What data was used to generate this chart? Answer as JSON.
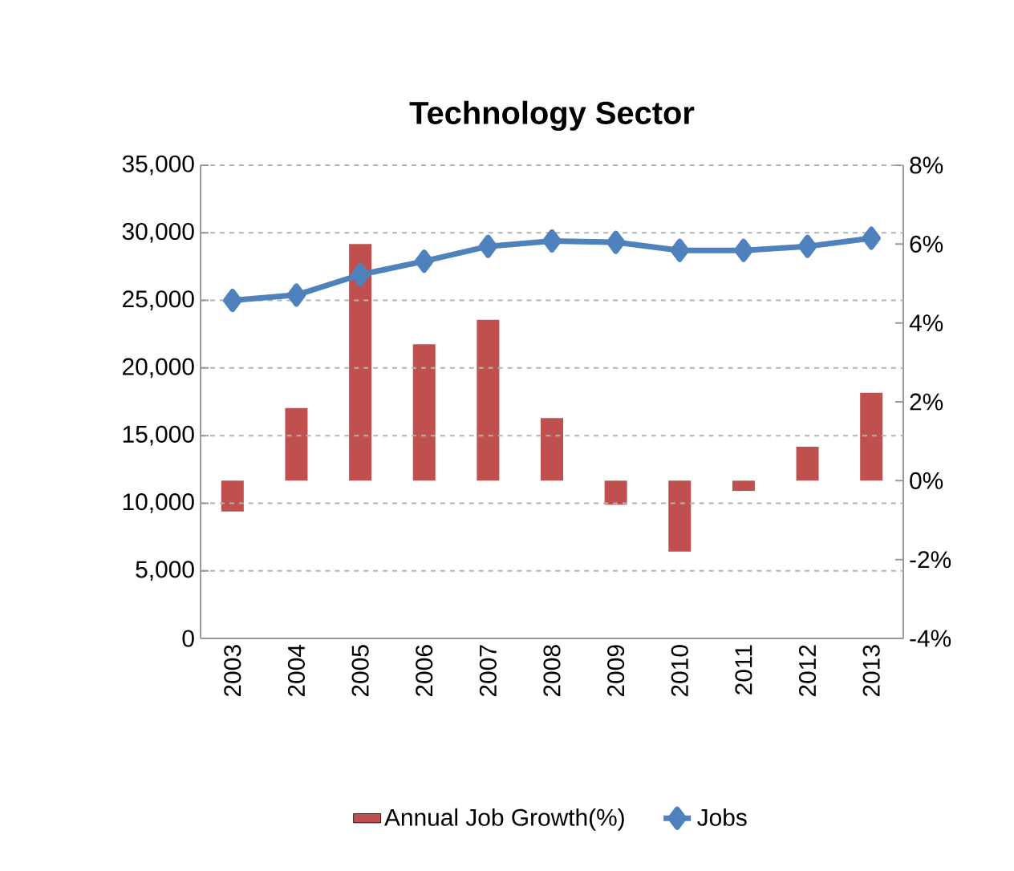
{
  "chart_data": {
    "type": "bar",
    "title": "Technology Sector",
    "categories": [
      "2003",
      "2004",
      "2005",
      "2006",
      "2007",
      "2008",
      "2009",
      "2010",
      "2011",
      "2012",
      "2013"
    ],
    "series": [
      {
        "name": "Annual Job Growth(%)",
        "axis": "y2",
        "color": "#c0504d",
        "values": [
          -0.78,
          1.84,
          6.0,
          3.46,
          4.08,
          1.59,
          -0.61,
          -1.8,
          -0.26,
          0.86,
          2.23
        ]
      },
      {
        "name": "Jobs",
        "type": "line",
        "color": "#4f81bd",
        "marker": "diamond",
        "values": [
          25000,
          25400,
          26900,
          27900,
          29000,
          29400,
          29300,
          28700,
          28700,
          29000,
          29600
        ]
      }
    ],
    "ylim": [
      0,
      35000
    ],
    "yticks": [
      0,
      {
        "value": 5000,
        "label": "5,000"
      },
      {
        "value": 10000,
        "label": "10,000"
      },
      {
        "value": 15000,
        "label": "15,000"
      },
      {
        "value": 20000,
        "label": "20,000"
      },
      {
        "value": 25000,
        "label": "25,000"
      },
      {
        "value": 30000,
        "label": "30,000"
      },
      {
        "value": 35000,
        "label": "35,000"
      }
    ],
    "y2lim": [
      -4,
      8
    ],
    "y2ticks": [
      {
        "value": -4,
        "label": "-4%"
      },
      {
        "value": -2,
        "label": "-2%"
      },
      {
        "value": 0,
        "label": "0%"
      },
      {
        "value": 2,
        "label": "2%"
      },
      {
        "value": 4,
        "label": "4%"
      },
      {
        "value": 6,
        "label": "6%"
      },
      {
        "value": 8,
        "label": "8%"
      }
    ],
    "grid": "y",
    "legend": "bottom"
  }
}
